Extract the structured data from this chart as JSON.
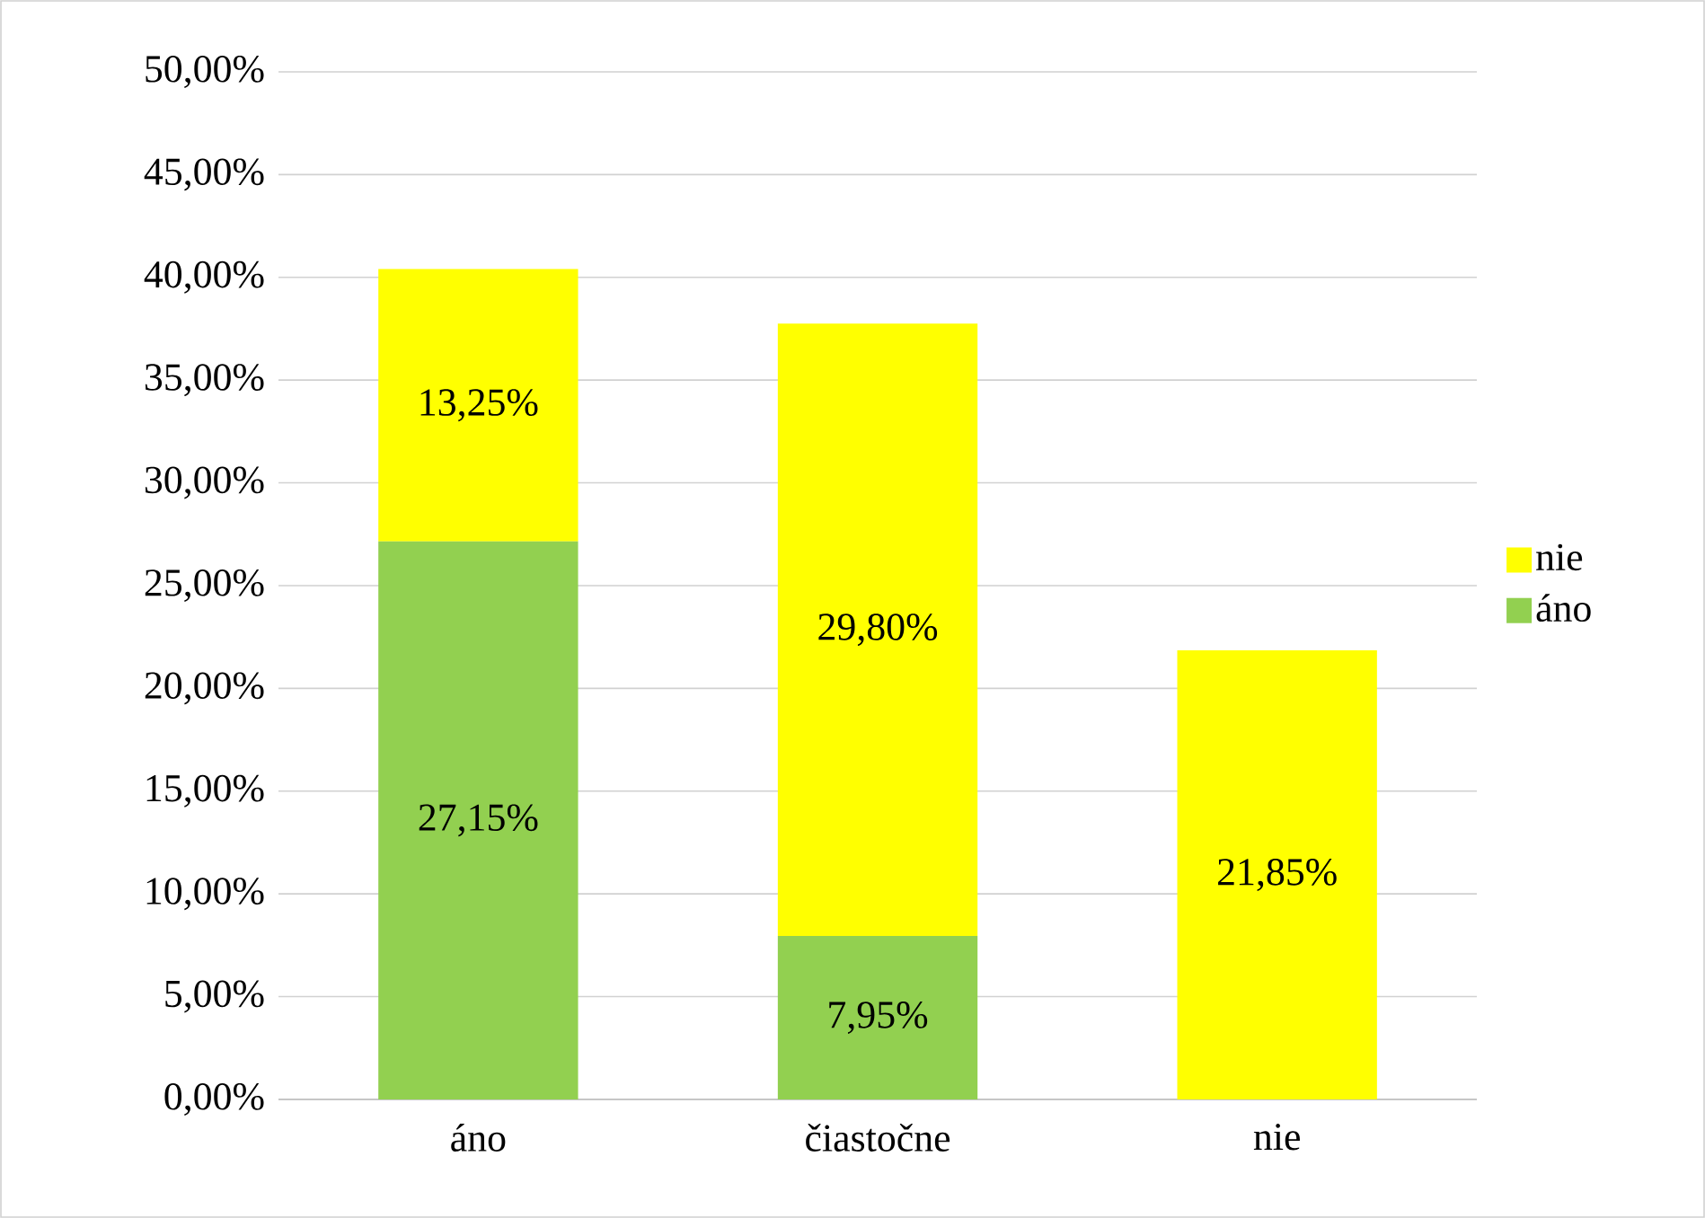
{
  "chart_data": {
    "type": "bar",
    "stacked": true,
    "categories": [
      "áno",
      "čiastočne",
      "nie"
    ],
    "series": [
      {
        "name": "áno",
        "color": "#92d050",
        "values": [
          27.15,
          7.95,
          0
        ],
        "value_labels": [
          "27,15%",
          "7,95%",
          null
        ]
      },
      {
        "name": "nie",
        "color": "#ffff00",
        "values": [
          13.25,
          29.8,
          21.85
        ],
        "value_labels": [
          "13,25%",
          "29,80%",
          "21,85%"
        ]
      }
    ],
    "ylim": [
      0,
      50
    ],
    "yticks": [
      {
        "value": 0,
        "label": "0,00%"
      },
      {
        "value": 5,
        "label": "5,00%"
      },
      {
        "value": 10,
        "label": "10,00%"
      },
      {
        "value": 15,
        "label": "15,00%"
      },
      {
        "value": 20,
        "label": "20,00%"
      },
      {
        "value": 25,
        "label": "25,00%"
      },
      {
        "value": 30,
        "label": "30,00%"
      },
      {
        "value": 35,
        "label": "35,00%"
      },
      {
        "value": 40,
        "label": "40,00%"
      },
      {
        "value": 45,
        "label": "45,00%"
      },
      {
        "value": 50,
        "label": "50,00%"
      }
    ],
    "grid": "y",
    "legend": "right"
  }
}
